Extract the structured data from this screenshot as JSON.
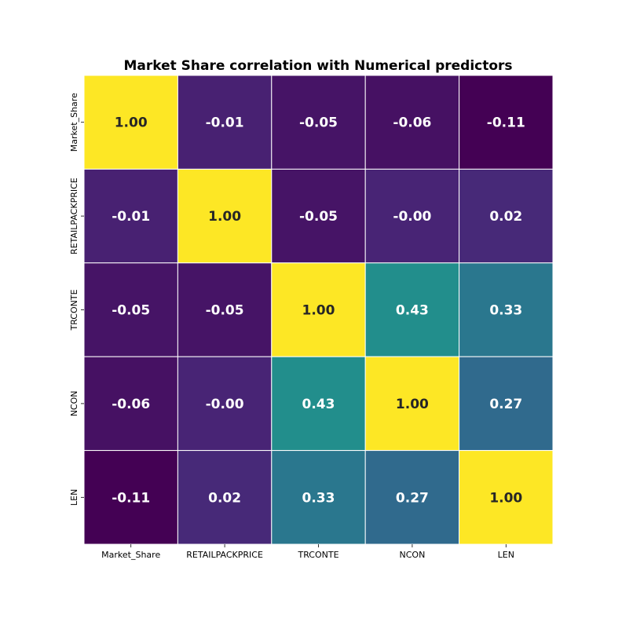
{
  "chart_data": {
    "type": "heatmap",
    "title": "Market Share correlation with Numerical predictors",
    "x_labels": [
      "Market_Share",
      "RETAILPACKPRICE",
      "TRCONTE",
      "NCON",
      "LEN"
    ],
    "y_labels": [
      "Market_Share",
      "RETAILPACKPRICE",
      "TRCONTE",
      "NCON",
      "LEN"
    ],
    "values": [
      [
        1.0,
        -0.01,
        -0.05,
        -0.06,
        -0.11
      ],
      [
        -0.01,
        1.0,
        -0.05,
        -0.0,
        0.02
      ],
      [
        -0.05,
        -0.05,
        1.0,
        0.43,
        0.33
      ],
      [
        -0.06,
        -0.0,
        0.43,
        1.0,
        0.27
      ],
      [
        -0.11,
        0.02,
        0.33,
        0.27,
        1.0
      ]
    ],
    "value_format": "0.00",
    "colormap": "viridis",
    "vmin": -0.11,
    "vmax": 1.0,
    "colorbar": false,
    "grid_line_color": "#ffffff"
  }
}
